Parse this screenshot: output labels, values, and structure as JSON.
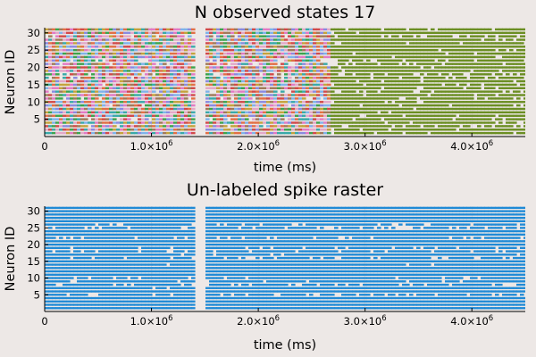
{
  "chart_data": [
    {
      "type": "scatter",
      "subtype": "spike-raster",
      "title": "N observed states 17",
      "xlabel": "time (ms)",
      "ylabel": "Neuron ID",
      "xlim": [
        0,
        4500000
      ],
      "ylim": [
        0,
        31.5
      ],
      "xticks": [
        0,
        1000000,
        2000000,
        3000000,
        4000000
      ],
      "xtick_labels": [
        {
          "base": "0",
          "exp": ""
        },
        {
          "base": "1.0×10",
          "exp": "6"
        },
        {
          "base": "2.0×10",
          "exp": "6"
        },
        {
          "base": "3.0×10",
          "exp": "6"
        },
        {
          "base": "4.0×10",
          "exp": "6"
        }
      ],
      "yticks": [
        5,
        10,
        15,
        20,
        25,
        30
      ],
      "neurons": 31,
      "gaps": [
        [
          1380000,
          1490000
        ]
      ],
      "state_segments": [
        {
          "x": [
            0,
            2660000
          ],
          "colors": [
            "#e26f46",
            "#3da44d",
            "#e27ac4",
            "#8a8ae0",
            "#7fb3ea",
            "#c4a33c",
            "#39a9a9",
            "#e3a8c8",
            "#a07a5a",
            "#d14a4a"
          ]
        },
        {
          "x": [
            2660000,
            4500000
          ],
          "colors": [
            "#6b8e23"
          ]
        }
      ],
      "grid": true,
      "legend": "none"
    },
    {
      "type": "scatter",
      "subtype": "spike-raster",
      "title": "Un-labeled spike raster",
      "xlabel": "time (ms)",
      "ylabel": "Neuron ID",
      "xlim": [
        0,
        4500000
      ],
      "ylim": [
        0,
        31.5
      ],
      "xticks": [
        0,
        1000000,
        2000000,
        3000000,
        4000000
      ],
      "xtick_labels": [
        {
          "base": "0",
          "exp": ""
        },
        {
          "base": "1.0×10",
          "exp": "6"
        },
        {
          "base": "2.0×10",
          "exp": "6"
        },
        {
          "base": "3.0×10",
          "exp": "6"
        },
        {
          "base": "4.0×10",
          "exp": "6"
        }
      ],
      "yticks": [
        5,
        10,
        15,
        20,
        25,
        30
      ],
      "neurons": 31,
      "gaps": [
        [
          1380000,
          1490000
        ]
      ],
      "color": "#1f8ad6",
      "grid": true,
      "legend": "none"
    }
  ]
}
